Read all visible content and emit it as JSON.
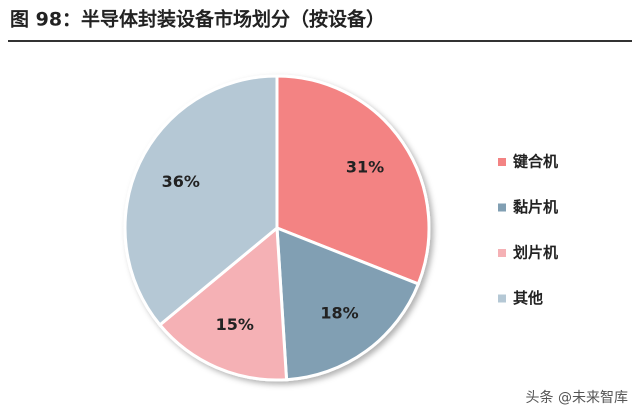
{
  "chart_data": {
    "type": "pie",
    "title": "图 98：半导体封装设备市场划分（按设备）",
    "categories": [
      "键合机",
      "黏片机",
      "划片机",
      "其他"
    ],
    "values": [
      31,
      18,
      15,
      36
    ],
    "value_labels": [
      "31%",
      "18%",
      "15%",
      "36%"
    ],
    "colors": [
      "#f38383",
      "#819fb3",
      "#f5b1b5",
      "#b5c8d5"
    ],
    "legend": "right",
    "watermark": "头条 @未来智库"
  }
}
